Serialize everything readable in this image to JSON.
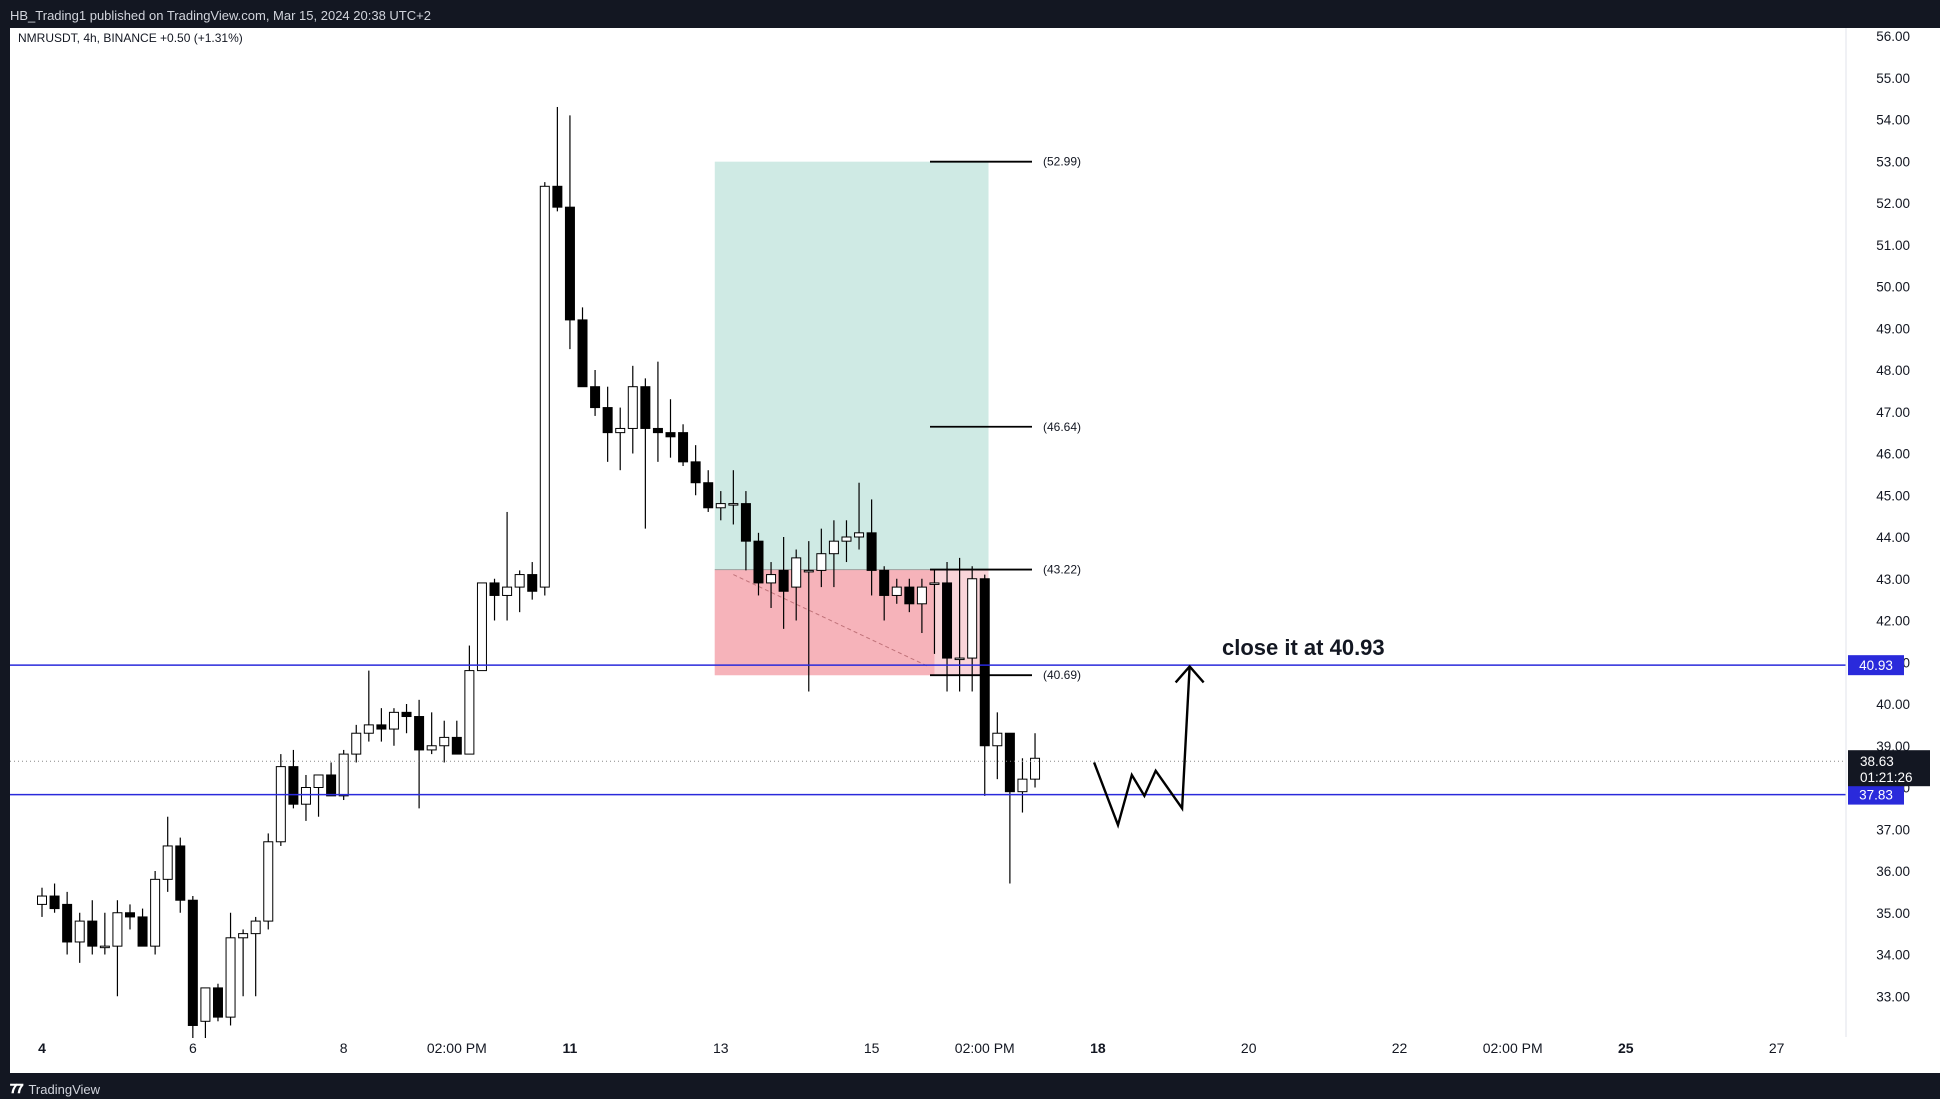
{
  "header": {
    "published": "HB_Trading1 published on TradingView.com, Mar 15, 2024 20:38 UTC+2"
  },
  "legend": {
    "text": "NMRUSDT, 4h, BINANCE  +0.50 (+1.31%)"
  },
  "footer": {
    "logo_mark": "𝟕𝟕",
    "brand": "TradingView"
  },
  "colors": {
    "background": "#ffffff",
    "frame": "#131722",
    "level_line": "#2a2adb",
    "profit_zone": "#cfeae4",
    "loss_zone": "#f9d4d8",
    "loss_zone_dark": "#f6b3ba",
    "candle_up": "#ffffff",
    "candle_down": "#000000"
  },
  "chart_data": {
    "type": "candlestick",
    "symbol": "NMRUSDT",
    "interval": "4h",
    "exchange": "BINANCE",
    "change": "+0.50 (+1.31%)",
    "ylim": [
      32.0,
      56.4
    ],
    "y_ticks": [
      "33.00",
      "34.00",
      "35.00",
      "36.00",
      "37.00",
      "38.00",
      "39.00",
      "40.00",
      "41.00",
      "42.00",
      "43.00",
      "44.00",
      "45.00",
      "46.00",
      "47.00",
      "48.00",
      "49.00",
      "50.00",
      "51.00",
      "52.00",
      "53.00",
      "54.00",
      "55.00",
      "56.00"
    ],
    "x_ticks": [
      {
        "bar": 0,
        "label": "4",
        "bold": true
      },
      {
        "bar": 12,
        "label": "6",
        "bold": false
      },
      {
        "bar": 24,
        "label": "8",
        "bold": false
      },
      {
        "bar": 33,
        "label": "02:00 PM",
        "bold": false
      },
      {
        "bar": 42,
        "label": "11",
        "bold": true
      },
      {
        "bar": 54,
        "label": "13",
        "bold": false
      },
      {
        "bar": 66,
        "label": "15",
        "bold": false
      },
      {
        "bar": 75,
        "label": "02:00 PM",
        "bold": false
      },
      {
        "bar": 84,
        "label": "18",
        "bold": true
      },
      {
        "bar": 96,
        "label": "20",
        "bold": false
      },
      {
        "bar": 108,
        "label": "22",
        "bold": false
      },
      {
        "bar": 117,
        "label": "02:00 PM",
        "bold": false
      },
      {
        "bar": 126,
        "label": "25",
        "bold": true
      },
      {
        "bar": 138,
        "label": "27",
        "bold": false
      }
    ],
    "candles": [
      [
        35.2,
        35.6,
        34.9,
        35.4
      ],
      [
        35.4,
        35.7,
        35.0,
        35.1
      ],
      [
        35.2,
        35.5,
        34.0,
        34.3
      ],
      [
        34.3,
        35.0,
        33.8,
        34.8
      ],
      [
        34.8,
        35.3,
        34.0,
        34.2
      ],
      [
        34.2,
        35.0,
        34.0,
        34.2
      ],
      [
        34.2,
        35.3,
        33.0,
        35.0
      ],
      [
        35.0,
        35.2,
        34.6,
        34.9
      ],
      [
        34.9,
        35.1,
        34.2,
        34.2
      ],
      [
        34.2,
        36.0,
        34.0,
        35.8
      ],
      [
        35.8,
        37.3,
        35.5,
        36.6
      ],
      [
        36.6,
        36.8,
        35.0,
        35.3
      ],
      [
        35.3,
        35.4,
        32.0,
        32.3
      ],
      [
        32.4,
        33.2,
        32.0,
        33.2
      ],
      [
        33.2,
        33.3,
        32.4,
        32.5
      ],
      [
        32.5,
        35.0,
        32.3,
        34.4
      ],
      [
        34.4,
        34.6,
        33.0,
        34.5
      ],
      [
        34.5,
        34.9,
        33.0,
        34.8
      ],
      [
        34.8,
        36.9,
        34.6,
        36.7
      ],
      [
        36.7,
        38.8,
        36.6,
        38.5
      ],
      [
        38.5,
        38.9,
        37.5,
        37.6
      ],
      [
        37.6,
        38.3,
        37.2,
        38.0
      ],
      [
        38.0,
        38.3,
        37.3,
        38.3
      ],
      [
        38.3,
        38.6,
        37.9,
        37.8
      ],
      [
        37.8,
        38.9,
        37.7,
        38.8
      ],
      [
        38.8,
        39.5,
        38.6,
        39.3
      ],
      [
        39.3,
        40.8,
        39.1,
        39.5
      ],
      [
        39.5,
        39.9,
        39.1,
        39.4
      ],
      [
        39.4,
        39.9,
        39.0,
        39.8
      ],
      [
        39.8,
        40.0,
        39.3,
        39.7
      ],
      [
        39.7,
        40.1,
        37.5,
        38.9
      ],
      [
        38.9,
        39.8,
        38.8,
        39.0
      ],
      [
        39.0,
        39.6,
        38.6,
        39.2
      ],
      [
        39.2,
        39.6,
        38.8,
        38.8
      ],
      [
        38.8,
        41.4,
        38.8,
        40.8
      ],
      [
        40.8,
        42.9,
        40.8,
        42.9
      ],
      [
        42.9,
        43.0,
        42.0,
        42.6
      ],
      [
        42.6,
        44.6,
        42.0,
        42.8
      ],
      [
        42.8,
        43.2,
        42.2,
        43.1
      ],
      [
        43.1,
        43.4,
        42.5,
        42.7
      ],
      [
        42.8,
        52.5,
        42.6,
        52.4
      ],
      [
        52.4,
        54.3,
        51.8,
        51.9
      ],
      [
        51.9,
        54.1,
        48.5,
        49.2
      ],
      [
        49.2,
        49.5,
        47.6,
        47.6
      ],
      [
        47.6,
        48.0,
        46.9,
        47.1
      ],
      [
        47.1,
        47.6,
        45.8,
        46.5
      ],
      [
        46.5,
        47.1,
        45.6,
        46.6
      ],
      [
        46.6,
        48.1,
        46.0,
        47.6
      ],
      [
        47.6,
        47.8,
        44.2,
        46.6
      ],
      [
        46.6,
        48.2,
        45.8,
        46.5
      ],
      [
        46.5,
        47.3,
        45.9,
        46.4
      ],
      [
        46.5,
        46.7,
        45.7,
        45.8
      ],
      [
        45.8,
        46.2,
        45.0,
        45.3
      ],
      [
        45.3,
        45.6,
        44.6,
        44.7
      ],
      [
        44.7,
        45.1,
        44.4,
        44.8
      ],
      [
        44.8,
        45.6,
        44.3,
        44.8
      ],
      [
        44.8,
        45.1,
        43.2,
        43.9
      ],
      [
        43.9,
        44.1,
        42.6,
        42.9
      ],
      [
        42.9,
        43.4,
        42.3,
        43.1
      ],
      [
        43.2,
        44.0,
        41.8,
        42.7
      ],
      [
        42.8,
        43.7,
        42.0,
        43.5
      ],
      [
        43.2,
        43.9,
        40.3,
        43.2
      ],
      [
        43.2,
        44.2,
        42.8,
        43.6
      ],
      [
        43.6,
        44.4,
        42.8,
        43.9
      ],
      [
        43.9,
        44.4,
        43.4,
        44.0
      ],
      [
        44.0,
        45.3,
        43.7,
        44.1
      ],
      [
        44.1,
        44.9,
        42.6,
        43.2
      ],
      [
        43.2,
        43.3,
        42.0,
        42.6
      ],
      [
        42.6,
        43.0,
        42.4,
        42.8
      ],
      [
        42.8,
        43.0,
        42.2,
        42.4
      ],
      [
        42.4,
        43.0,
        41.7,
        42.8
      ],
      [
        42.9,
        43.2,
        41.2,
        42.9
      ],
      [
        42.9,
        43.4,
        40.3,
        41.1
      ],
      [
        41.1,
        43.5,
        40.3,
        41.1
      ],
      [
        41.1,
        43.3,
        40.3,
        43.0
      ],
      [
        43.0,
        43.1,
        37.8,
        39.0
      ],
      [
        39.0,
        39.8,
        38.2,
        39.3
      ],
      [
        39.3,
        39.3,
        35.7,
        37.9
      ],
      [
        37.9,
        38.7,
        37.4,
        38.2
      ],
      [
        38.2,
        39.3,
        38.0,
        38.7
      ]
    ],
    "horizontal_levels": [
      {
        "price": 40.93,
        "label": "40.93"
      },
      {
        "price": 37.83,
        "label": "37.83"
      }
    ],
    "current_price": {
      "price": 38.63,
      "label": "38.63",
      "countdown": "01:21:26"
    },
    "position": {
      "type": "long",
      "start_bar": 54,
      "end_bar": 75.3,
      "entry": 43.22,
      "stop": 40.69,
      "target": 52.99
    },
    "price_marks": [
      {
        "price": 52.99,
        "label": "(52.99)"
      },
      {
        "price": 46.64,
        "label": "(46.64)"
      },
      {
        "price": 43.22,
        "label": "(43.22)"
      },
      {
        "price": 40.69,
        "label": "(40.69)"
      }
    ],
    "annotation": {
      "text": "close it at 40.93"
    },
    "projection_path": [
      [
        83.7,
        38.6
      ],
      [
        85.6,
        37.1
      ],
      [
        86.7,
        38.3
      ],
      [
        87.7,
        37.8
      ],
      [
        88.6,
        38.4
      ],
      [
        90.7,
        37.5
      ],
      [
        91.3,
        40.9
      ]
    ]
  }
}
